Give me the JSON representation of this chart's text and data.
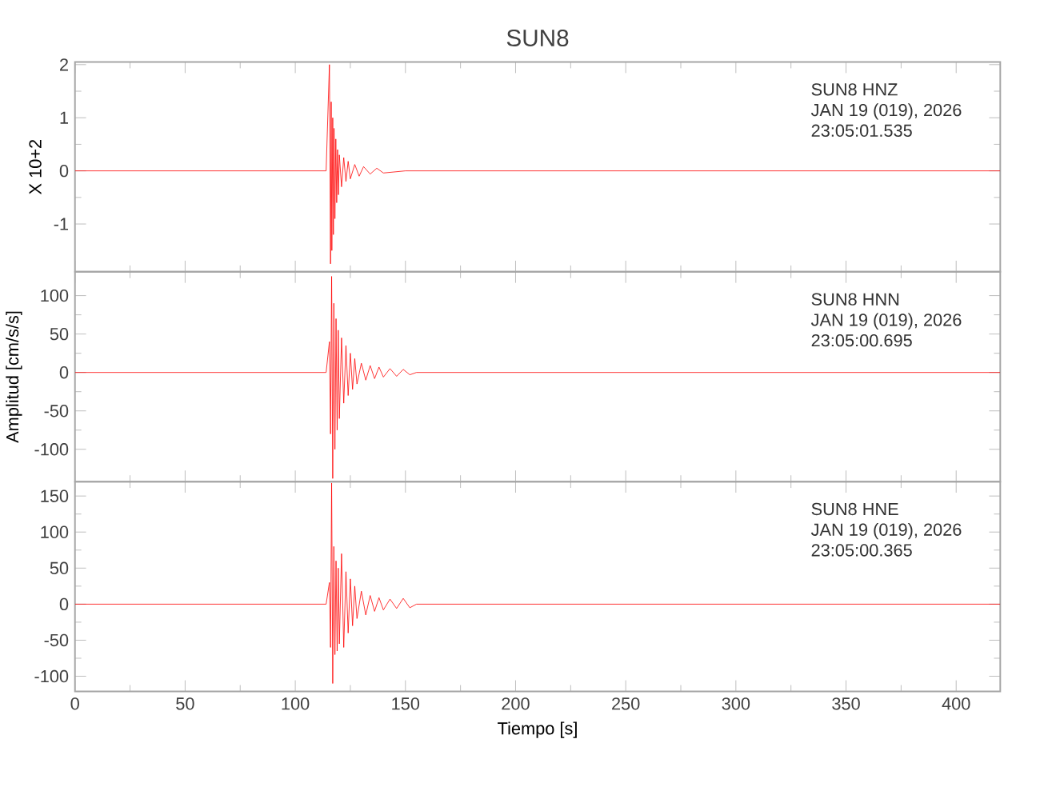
{
  "chart_data": [
    {
      "type": "line",
      "title": "SUN8",
      "ylabel": "X 10+2",
      "tick_labels": "y",
      "xlim": [
        0,
        420
      ],
      "xticks": [
        0,
        50,
        100,
        150,
        200,
        250,
        300,
        350,
        400
      ],
      "ylim": [
        -1.9,
        2.05
      ],
      "yticks": [
        -1,
        0,
        1,
        2
      ],
      "annotations": [
        "SUN8   HNZ",
        "JAN 19 (019), 2026",
        "23:05:01.535"
      ],
      "x": [
        0,
        114,
        115.5,
        116,
        116.3,
        116.6,
        117,
        117.3,
        117.6,
        118,
        118.4,
        118.8,
        119.2,
        119.6,
        120,
        121,
        122,
        123,
        124,
        125,
        127,
        129,
        131,
        134,
        137,
        140,
        150,
        420
      ],
      "series": [
        {
          "color": "#ff0000",
          "values": [
            0,
            0,
            2.0,
            -1.75,
            1.3,
            -1.5,
            1.0,
            -1.2,
            0.8,
            -0.9,
            0.6,
            -0.6,
            0.4,
            -0.45,
            0.3,
            -0.3,
            0.25,
            -0.2,
            0.18,
            -0.15,
            0.12,
            -0.1,
            0.08,
            -0.06,
            0.05,
            -0.04,
            0,
            0
          ]
        }
      ]
    },
    {
      "type": "line",
      "ylabel": "Amplitud [cm/s/s]",
      "tick_labels": "y",
      "xlim": [
        0,
        420
      ],
      "xticks": [
        0,
        50,
        100,
        150,
        200,
        250,
        300,
        350,
        400
      ],
      "ylim": [
        -142,
        131
      ],
      "yticks": [
        -100,
        -50,
        0,
        50,
        100
      ],
      "annotations": [
        "SUN8   HNN",
        "JAN 19 (019), 2026",
        "23:05:00.695"
      ],
      "x": [
        0,
        114,
        115.5,
        116,
        116.5,
        117,
        117.5,
        118,
        118.5,
        119,
        119.5,
        120,
        121,
        122,
        123,
        124,
        125,
        126,
        127,
        128,
        130,
        132,
        134,
        136,
        138,
        140,
        143,
        146,
        149,
        152,
        155,
        420
      ],
      "series": [
        {
          "color": "#ff0000",
          "values": [
            0,
            0,
            40,
            -80,
            125,
            -138,
            90,
            -100,
            70,
            -75,
            55,
            -60,
            45,
            -40,
            35,
            -30,
            25,
            -22,
            18,
            -15,
            12,
            -10,
            9,
            -8,
            7,
            -6,
            5,
            -5,
            4,
            -3,
            0,
            0
          ]
        }
      ]
    },
    {
      "type": "line",
      "xlabel": "Tiempo [s]",
      "xlim": [
        0,
        420
      ],
      "xticks": [
        0,
        50,
        100,
        150,
        200,
        250,
        300,
        350,
        400
      ],
      "ylim": [
        -121,
        170
      ],
      "yticks": [
        -100,
        -50,
        0,
        50,
        100,
        150
      ],
      "annotations": [
        "SUN8   HNE",
        "JAN 19 (019), 2026",
        "23:05:00.365"
      ],
      "x": [
        0,
        114,
        115.5,
        116,
        116.5,
        117,
        117.5,
        118,
        118.5,
        119,
        119.5,
        120,
        121,
        122,
        123,
        124,
        125,
        126,
        127,
        128,
        130,
        132,
        134,
        136,
        138,
        140,
        143,
        146,
        149,
        152,
        155,
        420
      ],
      "series": [
        {
          "color": "#ff0000",
          "values": [
            0,
            0,
            30,
            -60,
            168,
            -110,
            80,
            -70,
            60,
            -65,
            50,
            -55,
            70,
            -60,
            45,
            -40,
            35,
            -30,
            25,
            -20,
            18,
            -15,
            12,
            -10,
            9,
            -8,
            7,
            -6,
            8,
            -5,
            0,
            0
          ]
        }
      ]
    }
  ]
}
